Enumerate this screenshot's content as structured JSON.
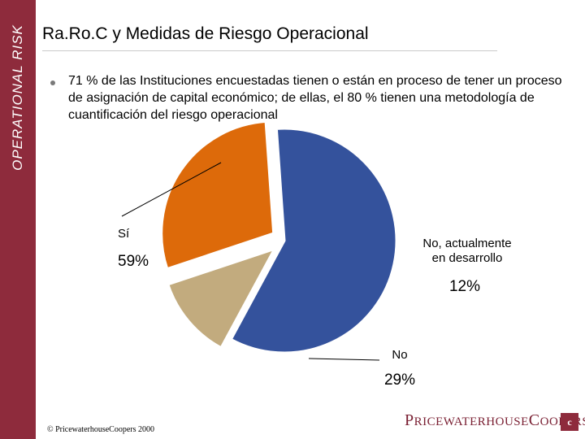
{
  "side_label": "OPERATIONAL RISK",
  "title": "Ra.Ro.C y Medidas de Riesgo Operacional",
  "bullet": "71 % de las Instituciones encuestadas tienen o están en proceso de tener un proceso de asignación de capital económico; de ellas, el 80 % tienen una metodología de cuantificación del riesgo operacional",
  "footer_note": "© PricewaterhouseCoopers 2000",
  "logo_text": "PRICEWATERHOUSECOOPERS",
  "colors": {
    "band": "#8e2b3c",
    "si": "#34529c",
    "dev": "#c2ab7e",
    "no": "#dd6a0a"
  },
  "chart_data": {
    "type": "pie",
    "title": "",
    "slices": [
      {
        "label": "Sí",
        "value": 59,
        "value_label": "59%",
        "color": "#34529c"
      },
      {
        "label": "No, actualmente en desarrollo",
        "value": 12,
        "value_label": "12%",
        "color": "#c2ab7e"
      },
      {
        "label": "No",
        "value": 29,
        "value_label": "29%",
        "color": "#dd6a0a"
      }
    ],
    "legend": "none"
  }
}
